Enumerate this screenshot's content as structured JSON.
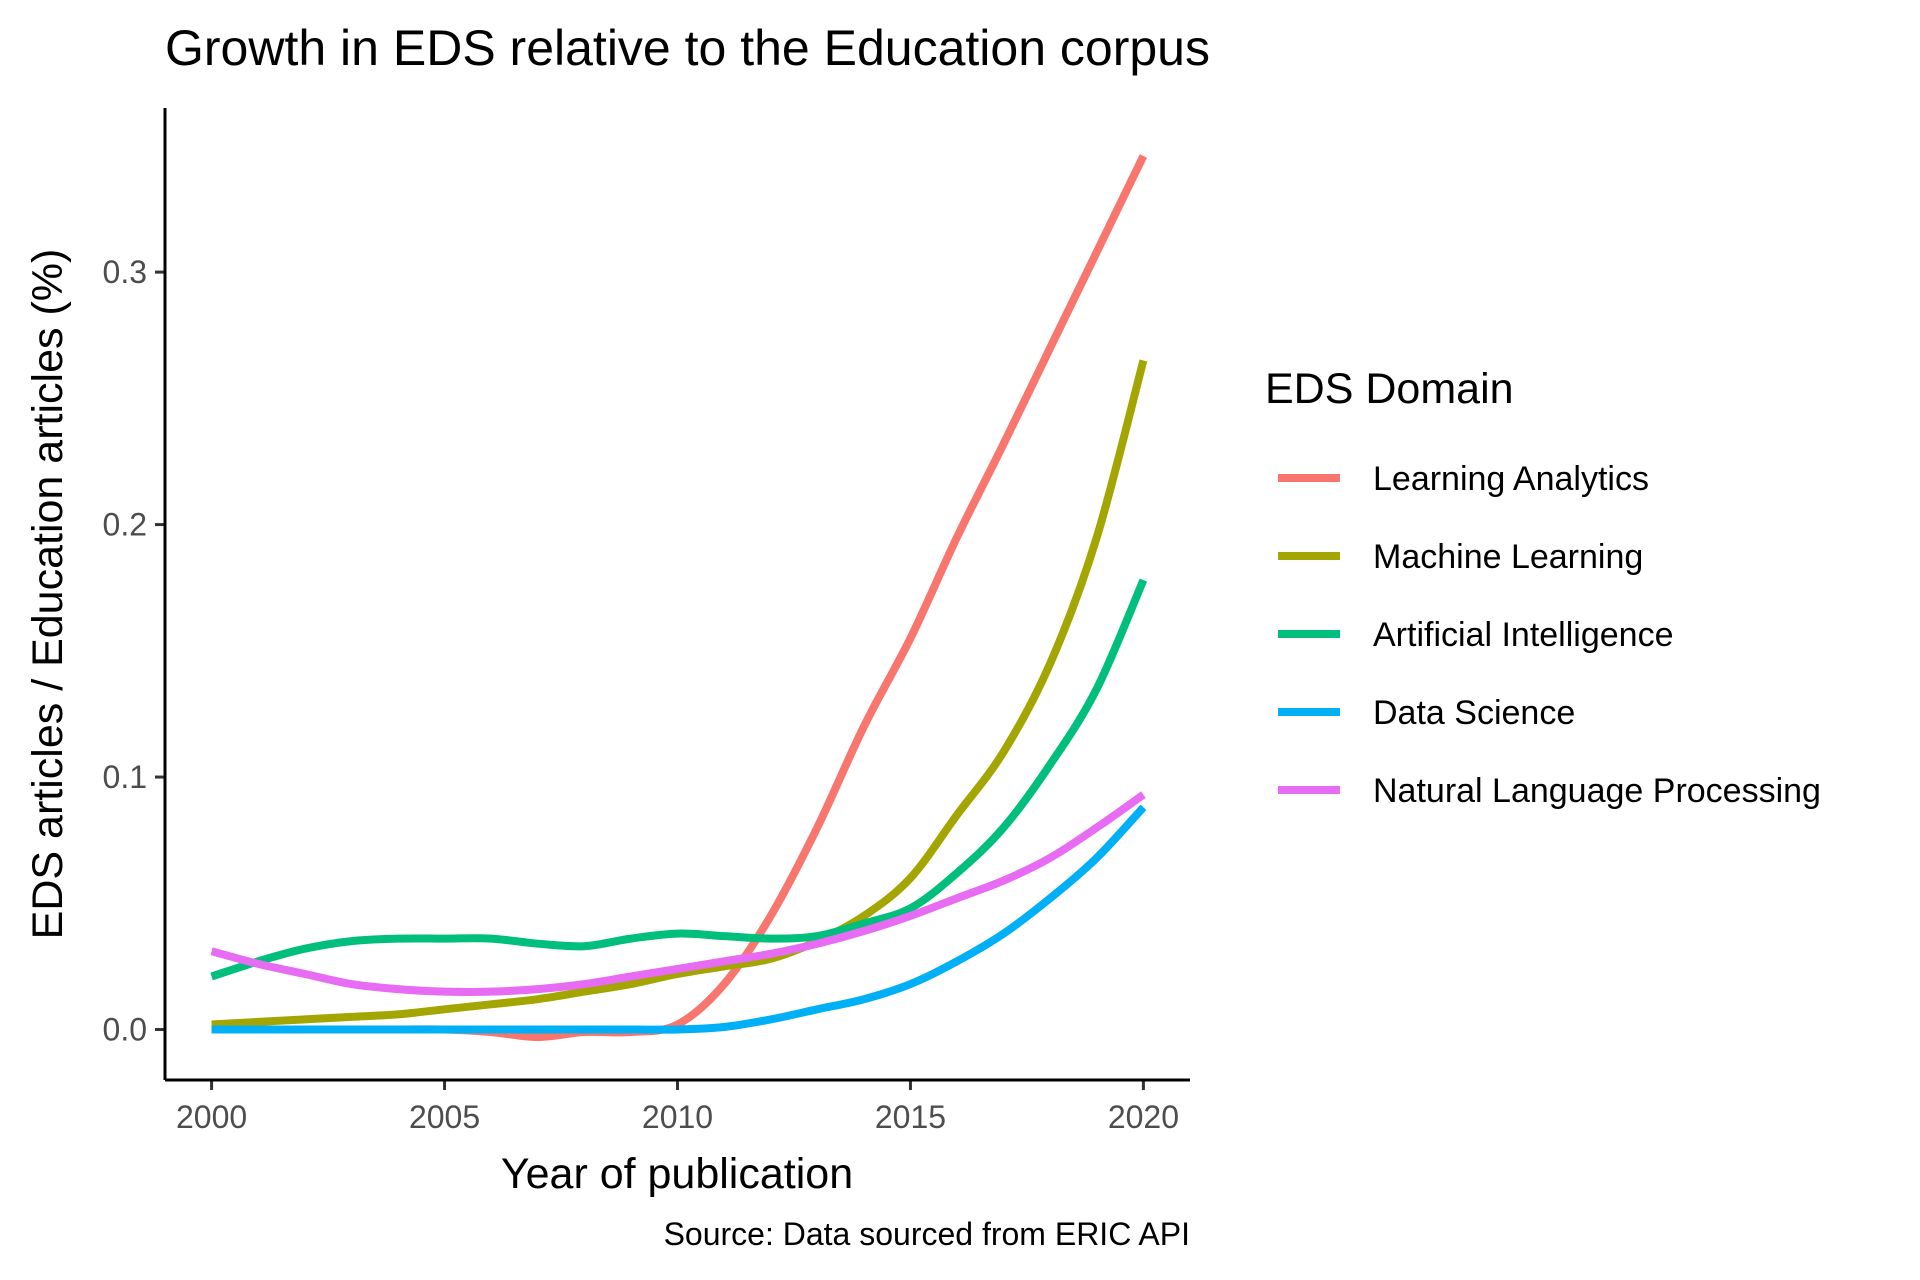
{
  "chart_data": {
    "type": "line",
    "title": "Growth in EDS relative to the Education corpus",
    "xlabel": "Year of publication",
    "ylabel": "EDS articles / Education articles (%)",
    "caption": "Source: Data sourced from ERIC API",
    "legend_title": "EDS Domain",
    "legend_position": "right",
    "grid": false,
    "xlim": [
      1999,
      2021
    ],
    "ylim": [
      -0.02,
      0.365
    ],
    "x_ticks": [
      2000,
      2005,
      2010,
      2015,
      2020
    ],
    "y_ticks": [
      0.0,
      0.1,
      0.2,
      0.3
    ],
    "x_tick_labels": [
      "2000",
      "2005",
      "2010",
      "2015",
      "2020"
    ],
    "y_tick_labels": [
      "0.0",
      "0.1",
      "0.2",
      "0.3"
    ],
    "x": [
      2000,
      2001,
      2002,
      2003,
      2004,
      2005,
      2006,
      2007,
      2008,
      2009,
      2010,
      2011,
      2012,
      2013,
      2014,
      2015,
      2016,
      2017,
      2018,
      2019,
      2020
    ],
    "series": [
      {
        "name": "Learning Analytics",
        "color": "#F8766D",
        "values": [
          0.0,
          0.0,
          0.0,
          0.0,
          0.0,
          0.0,
          -0.001,
          -0.003,
          -0.001,
          -0.001,
          0.002,
          0.018,
          0.045,
          0.08,
          0.12,
          0.155,
          0.195,
          0.232,
          0.27,
          0.308,
          0.346
        ]
      },
      {
        "name": "Machine Learning",
        "color": "#A3A500",
        "values": [
          0.002,
          0.003,
          0.004,
          0.005,
          0.006,
          0.008,
          0.01,
          0.012,
          0.015,
          0.018,
          0.022,
          0.025,
          0.028,
          0.035,
          0.045,
          0.06,
          0.085,
          0.11,
          0.145,
          0.195,
          0.265
        ]
      },
      {
        "name": "Artificial Intelligence",
        "color": "#00BF7D",
        "values": [
          0.021,
          0.027,
          0.032,
          0.035,
          0.036,
          0.036,
          0.036,
          0.034,
          0.033,
          0.036,
          0.038,
          0.037,
          0.036,
          0.037,
          0.042,
          0.048,
          0.062,
          0.08,
          0.105,
          0.135,
          0.178
        ]
      },
      {
        "name": "Data Science",
        "color": "#00B0F6",
        "values": [
          0.0,
          0.0,
          0.0,
          0.0,
          0.0,
          0.0,
          0.0,
          0.0,
          0.0,
          0.0,
          0.0,
          0.001,
          0.004,
          0.008,
          0.012,
          0.018,
          0.027,
          0.038,
          0.052,
          0.068,
          0.088
        ]
      },
      {
        "name": "Natural Language Processing",
        "color": "#E76BF3",
        "values": [
          0.031,
          0.026,
          0.022,
          0.018,
          0.016,
          0.015,
          0.015,
          0.016,
          0.018,
          0.021,
          0.024,
          0.027,
          0.03,
          0.034,
          0.039,
          0.045,
          0.052,
          0.059,
          0.068,
          0.08,
          0.093
        ]
      }
    ]
  }
}
